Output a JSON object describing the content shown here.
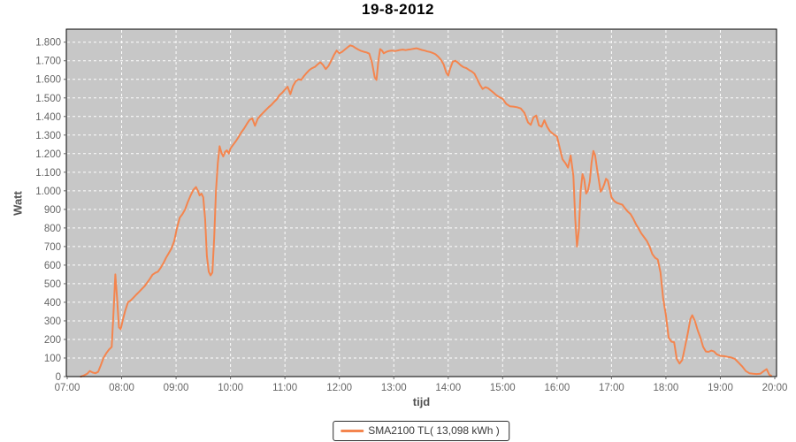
{
  "title": "19-8-2012",
  "axes": {
    "y_label": "Watt",
    "x_label": "tijd",
    "y_ticks": [
      "0",
      "100",
      "200",
      "300",
      "400",
      "500",
      "600",
      "700",
      "800",
      "900",
      "1.000",
      "1.100",
      "1.200",
      "1.300",
      "1.400",
      "1.500",
      "1.600",
      "1.700",
      "1.800"
    ],
    "x_ticks": [
      "07:00",
      "08:00",
      "09:00",
      "10:00",
      "11:00",
      "12:00",
      "13:00",
      "14:00",
      "15:00",
      "16:00",
      "17:00",
      "18:00",
      "19:00",
      "20:00"
    ]
  },
  "legend": {
    "label": "SMA2100 TL( 13,098 kWh )",
    "line_color": "#F4854E"
  },
  "colors": {
    "series": "#F4854E",
    "plot_bg": "#C7C7C7",
    "grid": "#FFFFFF",
    "plot_border": "#000000",
    "tick_text": "#666666",
    "tick_mark": "#666666",
    "axis_label": "#545454",
    "title_text": "#000000"
  },
  "chart_data": {
    "type": "line",
    "title": "19-8-2012",
    "xlabel": "tijd",
    "ylabel": "Watt",
    "x_range": [
      "07:00",
      "20:00"
    ],
    "ylim": [
      0,
      1870
    ],
    "y_tick_step": 100,
    "grid": true,
    "grid_style": "white-dashed",
    "legend_position": "bottom-center",
    "series": [
      {
        "name": "SMA2100 TL( 13,098 kWh )",
        "color": "#F4854E",
        "points": [
          [
            "07:15",
            0
          ],
          [
            "07:18",
            5
          ],
          [
            "07:22",
            15
          ],
          [
            "07:25",
            30
          ],
          [
            "07:28",
            22
          ],
          [
            "07:31",
            18
          ],
          [
            "07:34",
            25
          ],
          [
            "07:37",
            60
          ],
          [
            "07:40",
            100
          ],
          [
            "07:43",
            125
          ],
          [
            "07:46",
            145
          ],
          [
            "07:49",
            160
          ],
          [
            "07:51",
            340
          ],
          [
            "07:53",
            550
          ],
          [
            "07:55",
            420
          ],
          [
            "07:57",
            265
          ],
          [
            "07:59",
            255
          ],
          [
            "08:01",
            300
          ],
          [
            "08:04",
            355
          ],
          [
            "08:07",
            400
          ],
          [
            "08:10",
            410
          ],
          [
            "08:13",
            425
          ],
          [
            "08:16",
            440
          ],
          [
            "08:19",
            455
          ],
          [
            "08:22",
            470
          ],
          [
            "08:25",
            485
          ],
          [
            "08:28",
            505
          ],
          [
            "08:31",
            525
          ],
          [
            "08:34",
            548
          ],
          [
            "08:37",
            558
          ],
          [
            "08:40",
            565
          ],
          [
            "08:43",
            585
          ],
          [
            "08:46",
            610
          ],
          [
            "08:49",
            640
          ],
          [
            "08:52",
            665
          ],
          [
            "08:55",
            690
          ],
          [
            "08:58",
            730
          ],
          [
            "09:01",
            800
          ],
          [
            "09:04",
            855
          ],
          [
            "09:07",
            875
          ],
          [
            "09:10",
            900
          ],
          [
            "09:13",
            940
          ],
          [
            "09:16",
            975
          ],
          [
            "09:19",
            1005
          ],
          [
            "09:22",
            1020
          ],
          [
            "09:24",
            1000
          ],
          [
            "09:26",
            975
          ],
          [
            "09:28",
            985
          ],
          [
            "09:30",
            965
          ],
          [
            "09:32",
            850
          ],
          [
            "09:34",
            650
          ],
          [
            "09:36",
            565
          ],
          [
            "09:38",
            545
          ],
          [
            "09:40",
            560
          ],
          [
            "09:42",
            750
          ],
          [
            "09:44",
            1000
          ],
          [
            "09:46",
            1150
          ],
          [
            "09:48",
            1240
          ],
          [
            "09:50",
            1205
          ],
          [
            "09:52",
            1185
          ],
          [
            "09:54",
            1210
          ],
          [
            "09:56",
            1218
          ],
          [
            "09:58",
            1200
          ],
          [
            "10:00",
            1228
          ],
          [
            "10:03",
            1248
          ],
          [
            "10:06",
            1268
          ],
          [
            "10:09",
            1290
          ],
          [
            "10:12",
            1315
          ],
          [
            "10:15",
            1335
          ],
          [
            "10:18",
            1360
          ],
          [
            "10:21",
            1382
          ],
          [
            "10:24",
            1390
          ],
          [
            "10:27",
            1350
          ],
          [
            "10:30",
            1388
          ],
          [
            "10:33",
            1405
          ],
          [
            "10:36",
            1420
          ],
          [
            "10:39",
            1435
          ],
          [
            "10:42",
            1450
          ],
          [
            "10:45",
            1462
          ],
          [
            "10:48",
            1478
          ],
          [
            "10:51",
            1492
          ],
          [
            "10:54",
            1515
          ],
          [
            "10:57",
            1528
          ],
          [
            "11:00",
            1545
          ],
          [
            "11:03",
            1560
          ],
          [
            "11:06",
            1520
          ],
          [
            "11:09",
            1565
          ],
          [
            "11:12",
            1590
          ],
          [
            "11:15",
            1600
          ],
          [
            "11:18",
            1597
          ],
          [
            "11:21",
            1618
          ],
          [
            "11:24",
            1635
          ],
          [
            "11:27",
            1650
          ],
          [
            "11:30",
            1660
          ],
          [
            "11:33",
            1667
          ],
          [
            "11:36",
            1680
          ],
          [
            "11:39",
            1692
          ],
          [
            "11:42",
            1678
          ],
          [
            "11:45",
            1655
          ],
          [
            "11:48",
            1672
          ],
          [
            "11:51",
            1700
          ],
          [
            "11:54",
            1730
          ],
          [
            "11:57",
            1755
          ],
          [
            "12:00",
            1740
          ],
          [
            "12:03",
            1748
          ],
          [
            "12:06",
            1760
          ],
          [
            "12:09",
            1772
          ],
          [
            "12:12",
            1783
          ],
          [
            "12:15",
            1778
          ],
          [
            "12:18",
            1768
          ],
          [
            "12:21",
            1760
          ],
          [
            "12:24",
            1753
          ],
          [
            "12:27",
            1748
          ],
          [
            "12:30",
            1745
          ],
          [
            "12:33",
            1738
          ],
          [
            "12:36",
            1690
          ],
          [
            "12:39",
            1610
          ],
          [
            "12:41",
            1597
          ],
          [
            "12:43",
            1700
          ],
          [
            "12:45",
            1763
          ],
          [
            "12:47",
            1755
          ],
          [
            "12:49",
            1740
          ],
          [
            "12:52",
            1748
          ],
          [
            "12:55",
            1753
          ],
          [
            "12:58",
            1755
          ],
          [
            "13:01",
            1752
          ],
          [
            "13:04",
            1755
          ],
          [
            "13:07",
            1758
          ],
          [
            "13:10",
            1760
          ],
          [
            "13:13",
            1757
          ],
          [
            "13:16",
            1760
          ],
          [
            "13:19",
            1762
          ],
          [
            "13:22",
            1765
          ],
          [
            "13:25",
            1767
          ],
          [
            "13:28",
            1763
          ],
          [
            "13:31",
            1758
          ],
          [
            "13:34",
            1755
          ],
          [
            "13:37",
            1750
          ],
          [
            "13:40",
            1747
          ],
          [
            "13:43",
            1742
          ],
          [
            "13:46",
            1735
          ],
          [
            "13:49",
            1722
          ],
          [
            "13:52",
            1705
          ],
          [
            "13:55",
            1680
          ],
          [
            "13:58",
            1635
          ],
          [
            "14:00",
            1620
          ],
          [
            "14:02",
            1655
          ],
          [
            "14:05",
            1695
          ],
          [
            "14:08",
            1700
          ],
          [
            "14:11",
            1688
          ],
          [
            "14:14",
            1675
          ],
          [
            "14:17",
            1665
          ],
          [
            "14:20",
            1660
          ],
          [
            "14:23",
            1650
          ],
          [
            "14:26",
            1642
          ],
          [
            "14:29",
            1630
          ],
          [
            "14:32",
            1600
          ],
          [
            "14:35",
            1570
          ],
          [
            "14:38",
            1548
          ],
          [
            "14:41",
            1558
          ],
          [
            "14:44",
            1552
          ],
          [
            "14:47",
            1540
          ],
          [
            "14:50",
            1528
          ],
          [
            "14:53",
            1515
          ],
          [
            "14:56",
            1505
          ],
          [
            "15:00",
            1495
          ],
          [
            "15:04",
            1468
          ],
          [
            "15:08",
            1455
          ],
          [
            "15:12",
            1453
          ],
          [
            "15:16",
            1450
          ],
          [
            "15:20",
            1443
          ],
          [
            "15:24",
            1420
          ],
          [
            "15:28",
            1368
          ],
          [
            "15:31",
            1355
          ],
          [
            "15:34",
            1395
          ],
          [
            "15:37",
            1405
          ],
          [
            "15:40",
            1352
          ],
          [
            "15:43",
            1345
          ],
          [
            "15:46",
            1380
          ],
          [
            "15:49",
            1345
          ],
          [
            "15:52",
            1322
          ],
          [
            "15:56",
            1305
          ],
          [
            "16:00",
            1292
          ],
          [
            "16:03",
            1230
          ],
          [
            "16:06",
            1170
          ],
          [
            "16:09",
            1150
          ],
          [
            "16:12",
            1125
          ],
          [
            "16:15",
            1190
          ],
          [
            "16:18",
            1080
          ],
          [
            "16:20",
            850
          ],
          [
            "16:22",
            700
          ],
          [
            "16:24",
            790
          ],
          [
            "16:26",
            1000
          ],
          [
            "16:28",
            1090
          ],
          [
            "16:30",
            1060
          ],
          [
            "16:32",
            985
          ],
          [
            "16:34",
            1000
          ],
          [
            "16:36",
            1050
          ],
          [
            "16:38",
            1150
          ],
          [
            "16:40",
            1215
          ],
          [
            "16:42",
            1190
          ],
          [
            "16:44",
            1120
          ],
          [
            "16:46",
            1060
          ],
          [
            "16:48",
            995
          ],
          [
            "16:50",
            1010
          ],
          [
            "16:52",
            1035
          ],
          [
            "16:54",
            1065
          ],
          [
            "16:56",
            1055
          ],
          [
            "16:58",
            1010
          ],
          [
            "17:00",
            965
          ],
          [
            "17:03",
            945
          ],
          [
            "17:06",
            935
          ],
          [
            "17:09",
            930
          ],
          [
            "17:12",
            925
          ],
          [
            "17:15",
            905
          ],
          [
            "17:18",
            888
          ],
          [
            "17:21",
            875
          ],
          [
            "17:24",
            850
          ],
          [
            "17:27",
            820
          ],
          [
            "17:30",
            795
          ],
          [
            "17:33",
            770
          ],
          [
            "17:36",
            750
          ],
          [
            "17:39",
            730
          ],
          [
            "17:42",
            700
          ],
          [
            "17:45",
            660
          ],
          [
            "17:48",
            640
          ],
          [
            "17:51",
            630
          ],
          [
            "17:54",
            560
          ],
          [
            "17:57",
            420
          ],
          [
            "18:00",
            330
          ],
          [
            "18:03",
            210
          ],
          [
            "18:06",
            188
          ],
          [
            "18:09",
            185
          ],
          [
            "18:12",
            95
          ],
          [
            "18:15",
            70
          ],
          [
            "18:18",
            90
          ],
          [
            "18:21",
            160
          ],
          [
            "18:24",
            230
          ],
          [
            "18:27",
            310
          ],
          [
            "18:29",
            330
          ],
          [
            "18:32",
            300
          ],
          [
            "18:35",
            250
          ],
          [
            "18:38",
            210
          ],
          [
            "18:41",
            160
          ],
          [
            "18:44",
            135
          ],
          [
            "18:47",
            133
          ],
          [
            "18:50",
            140
          ],
          [
            "18:53",
            135
          ],
          [
            "18:56",
            120
          ],
          [
            "19:00",
            112
          ],
          [
            "19:04",
            110
          ],
          [
            "19:08",
            106
          ],
          [
            "19:12",
            103
          ],
          [
            "19:16",
            95
          ],
          [
            "19:20",
            75
          ],
          [
            "19:24",
            55
          ],
          [
            "19:28",
            30
          ],
          [
            "19:32",
            18
          ],
          [
            "19:36",
            15
          ],
          [
            "19:40",
            14
          ],
          [
            "19:44",
            15
          ],
          [
            "19:48",
            30
          ],
          [
            "19:51",
            40
          ],
          [
            "19:54",
            10
          ],
          [
            "19:56",
            5
          ]
        ]
      }
    ]
  }
}
